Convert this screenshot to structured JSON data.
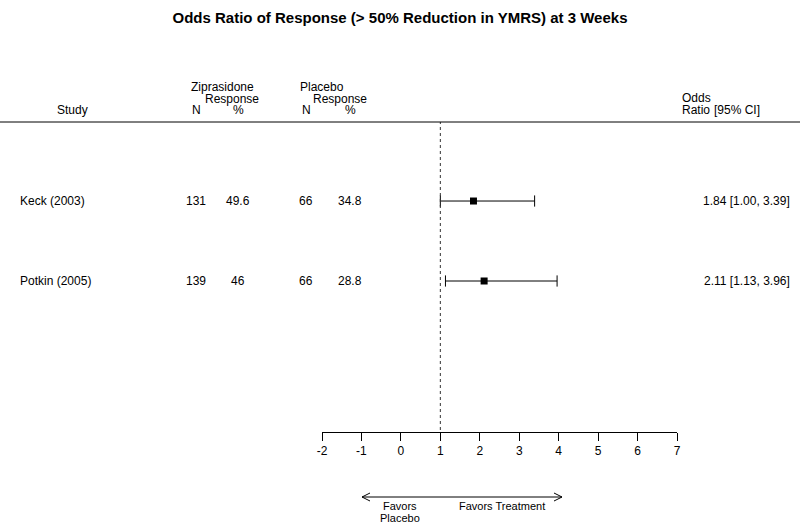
{
  "chart_data": {
    "type": "forest",
    "title": "Odds Ratio of Response (> 50% Reduction in YMRS) at 3 Weeks",
    "columns": {
      "study": "Study",
      "treatment": {
        "name": "Ziprasidone",
        "subtitle": "Response",
        "n": "N",
        "pct": "%"
      },
      "control": {
        "name": "Placebo",
        "subtitle": "Response",
        "n": "N",
        "pct": "%"
      },
      "effect": {
        "line1": "Odds",
        "line2": "Ratio",
        "ci": "[95% CI]"
      }
    },
    "rows": [
      {
        "study": "Keck (2003)",
        "treatment_n": 131,
        "treatment_pct": 49.6,
        "control_n": 66,
        "control_pct": 34.8,
        "odds_ratio": 1.84,
        "ci_lower": 1.0,
        "ci_upper": 3.39,
        "odds_ratio_label": "1.84 [1.00, 3.39]"
      },
      {
        "study": "Potkin (2005)",
        "treatment_n": 139,
        "treatment_pct": 46,
        "control_n": 66,
        "control_pct": 28.8,
        "odds_ratio": 2.11,
        "ci_lower": 1.13,
        "ci_upper": 3.96,
        "odds_ratio_label": "2.11 [1.13, 3.96]"
      }
    ],
    "xlim": [
      -2,
      7
    ],
    "xticks": [
      -2,
      -1,
      0,
      1,
      2,
      3,
      4,
      5,
      6,
      7
    ],
    "reference_line": 1,
    "arrow_labels": {
      "left": [
        "Favors",
        "Placebo"
      ],
      "right": "Favors Treatment"
    },
    "color": "#000000",
    "marker": "square"
  }
}
